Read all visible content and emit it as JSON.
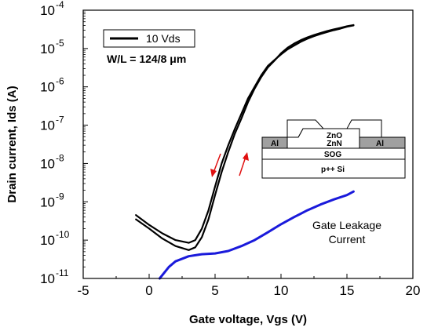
{
  "chart_data": {
    "type": "line",
    "xlabel": "Gate voltage, Vgs (V)",
    "ylabel": "Drain current, Ids (A)",
    "xlim": [
      -5,
      20
    ],
    "ylim": [
      1e-11,
      0.0001
    ],
    "yscale": "log",
    "xticks": [
      "-5",
      "0",
      "5",
      "10",
      "15",
      "20"
    ],
    "yticks": [
      {
        "mantissa": "10",
        "exp": "-11"
      },
      {
        "mantissa": "10",
        "exp": "-10"
      },
      {
        "mantissa": "10",
        "exp": "-9"
      },
      {
        "mantissa": "10",
        "exp": "-8"
      },
      {
        "mantissa": "10",
        "exp": "-7"
      },
      {
        "mantissa": "10",
        "exp": "-6"
      },
      {
        "mantissa": "10",
        "exp": "-5"
      },
      {
        "mantissa": "10",
        "exp": "-4"
      }
    ],
    "legend": {
      "label": "10 Vds",
      "position": "top-left"
    },
    "wl_label_text": "W/L = 124/8 ",
    "wl_label_unit": "μm",
    "annotation": {
      "line1": "Gate Leakage",
      "line2": "Current"
    },
    "series": [
      {
        "color": "#000000",
        "x": [
          -1,
          0,
          1,
          2,
          3,
          3.5,
          4,
          4.5,
          5,
          5.5,
          6,
          6.5,
          7,
          7.5,
          8,
          8.5,
          9,
          9.5,
          10,
          10.5,
          11,
          11.5,
          12,
          12.5,
          13,
          13.5,
          14,
          14.5,
          15,
          15.5
        ],
        "y": [
          4.5e-10,
          2.5e-10,
          1.5e-10,
          1e-10,
          8.5e-11,
          1e-10,
          2e-10,
          6e-10,
          2.5e-09,
          1e-08,
          3e-08,
          8e-08,
          2e-07,
          5e-07,
          1e-06,
          2e-06,
          3.5e-06,
          5e-06,
          7e-06,
          9.5e-06,
          1.2e-05,
          1.5e-05,
          1.8e-05,
          2.1e-05,
          2.4e-05,
          2.7e-05,
          3e-05,
          3.3e-05,
          3.7e-05,
          4e-05
        ]
      },
      {
        "color": "#000000",
        "x": [
          -1,
          0,
          1,
          2,
          3,
          3.5,
          4,
          4.5,
          5,
          5.5,
          6,
          6.5,
          7,
          7.5,
          8,
          8.5,
          9,
          9.5,
          10,
          10.5,
          11,
          11.5,
          12,
          12.5,
          13,
          13.5,
          14,
          14.5,
          15,
          15.5
        ],
        "y": [
          3.5e-10,
          2e-10,
          1.1e-10,
          7e-11,
          5.5e-11,
          6.5e-11,
          1.2e-10,
          3.5e-10,
          1.5e-09,
          6e-09,
          2e-08,
          6e-08,
          1.5e-07,
          4e-07,
          9e-07,
          1.8e-06,
          3.2e-06,
          4.8e-06,
          7.5e-06,
          1.05e-05,
          1.35e-05,
          1.65e-05,
          1.95e-05,
          2.25e-05,
          2.55e-05,
          2.85e-05,
          3.15e-05,
          3.45e-05,
          3.8e-05,
          4.1e-05
        ]
      },
      {
        "color": "#1a1adb",
        "x": [
          0.8,
          1.5,
          2,
          3,
          4,
          5,
          6,
          7,
          8,
          9,
          10,
          11,
          12,
          13,
          14,
          15,
          15.5
        ],
        "y": [
          1e-11,
          2e-11,
          2.8e-11,
          3.8e-11,
          4.3e-11,
          4.5e-11,
          5.2e-11,
          7e-11,
          1e-10,
          1.6e-10,
          2.6e-10,
          4e-10,
          6e-10,
          8.5e-10,
          1.15e-09,
          1.5e-09,
          1.85e-09
        ]
      }
    ],
    "inset": {
      "layers": {
        "zno": "ZnO",
        "znn": "ZnN",
        "al_left": "Al",
        "al_right": "Al",
        "sog": "SOG",
        "si": "p++ Si"
      }
    }
  }
}
